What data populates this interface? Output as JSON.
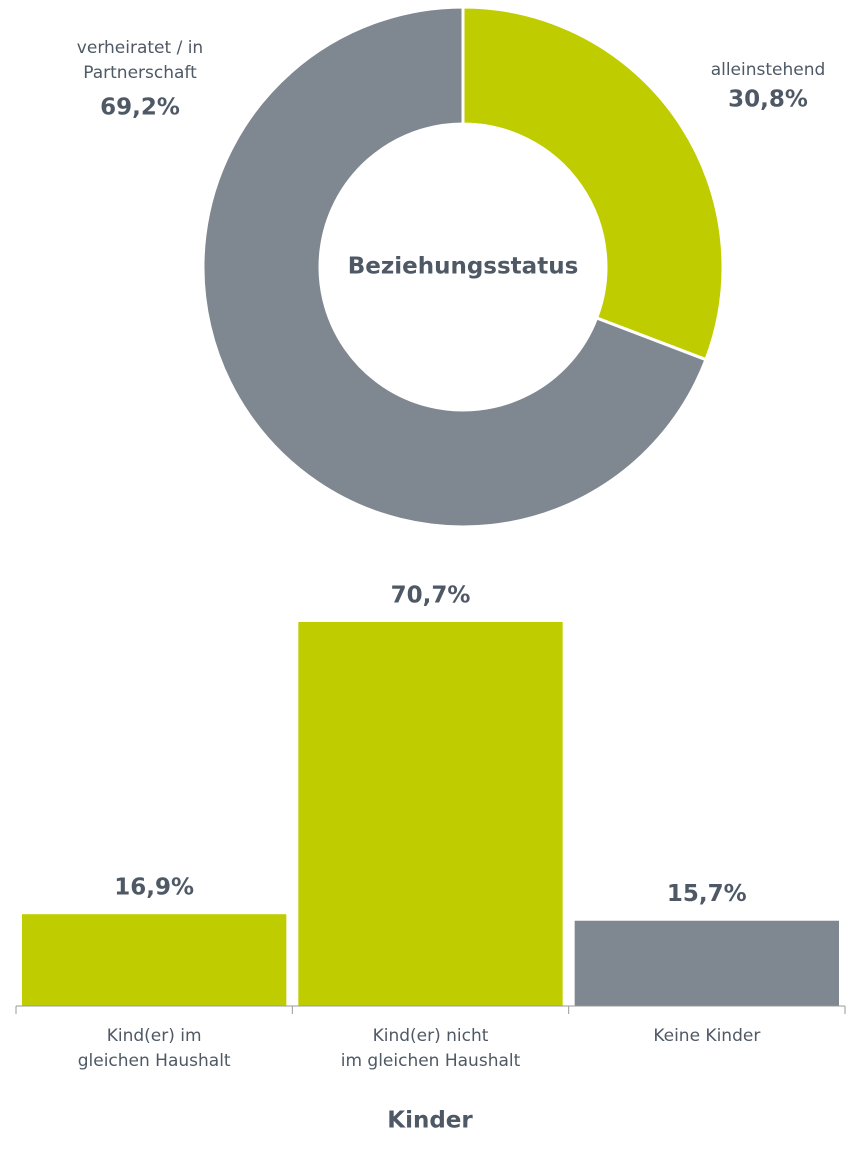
{
  "chart_data": [
    {
      "type": "donut",
      "title": "Beziehungsstatus",
      "categories": [
        "alleinstehend",
        "verheiratet / in\nPartnerschaft"
      ],
      "values": [
        30.8,
        69.2
      ],
      "value_labels": [
        "30,8%",
        "69,2%"
      ],
      "colors": [
        "#bfcd00",
        "#7f8790"
      ]
    },
    {
      "type": "bar",
      "title": "Kinder",
      "categories": [
        "Kind(er) im\ngleichen Haushalt",
        "Kind(er) nicht\nim gleichen Haushalt",
        "Keine Kinder"
      ],
      "values": [
        16.9,
        70.7,
        15.7
      ],
      "value_labels": [
        "16,9%",
        "70,7%",
        "15,7%"
      ],
      "colors": [
        "#bfcd00",
        "#bfcd00",
        "#7f8790"
      ],
      "ylim": [
        0,
        70.7
      ]
    }
  ]
}
